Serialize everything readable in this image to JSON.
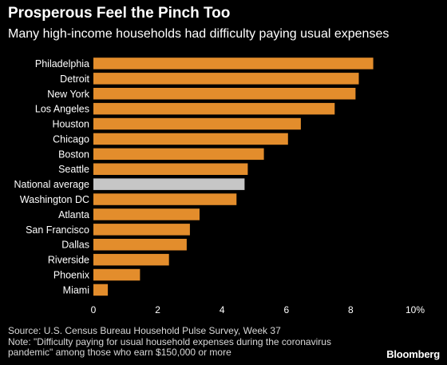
{
  "header": {
    "title": "Prosperous Feel the Pinch Too",
    "subtitle": "Many high-income households had difficulty paying usual expenses"
  },
  "colors": {
    "bar": "#e38d2c",
    "highlight": "#c6c6c6",
    "background": "#000000",
    "text": "#ffffff",
    "grid": "#3a3a3a"
  },
  "chart_data": {
    "type": "bar",
    "orientation": "horizontal",
    "categories": [
      "Philadelphia",
      "Detroit",
      "New York",
      "Los Angeles",
      "Houston",
      "Chicago",
      "Boston",
      "Seattle",
      "National average",
      "Washington DC",
      "Atlanta",
      "San Francisco",
      "Dallas",
      "Riverside",
      "Phoenix",
      "Miami"
    ],
    "values": [
      8.7,
      8.25,
      8.15,
      7.5,
      6.45,
      6.05,
      5.3,
      4.8,
      4.7,
      4.45,
      3.3,
      3.0,
      2.9,
      2.35,
      1.45,
      0.45
    ],
    "highlight_category": "National average",
    "xlim": [
      0,
      10
    ],
    "xticks": [
      "0",
      "2",
      "4",
      "6",
      "8",
      "10%"
    ],
    "grid": false,
    "title": "Prosperous Feel the Pinch Too",
    "subtitle": "Many high-income households had difficulty paying usual expenses"
  },
  "footer": {
    "source": "Source: U.S. Census Bureau Household Pulse Survey, Week 37",
    "note_line1": "Note: \"Difficulty paying for usual household expenses during the coronavirus",
    "note_line2": "pandemic\" among those who earn $150,000 or more",
    "brand": "Bloomberg"
  }
}
